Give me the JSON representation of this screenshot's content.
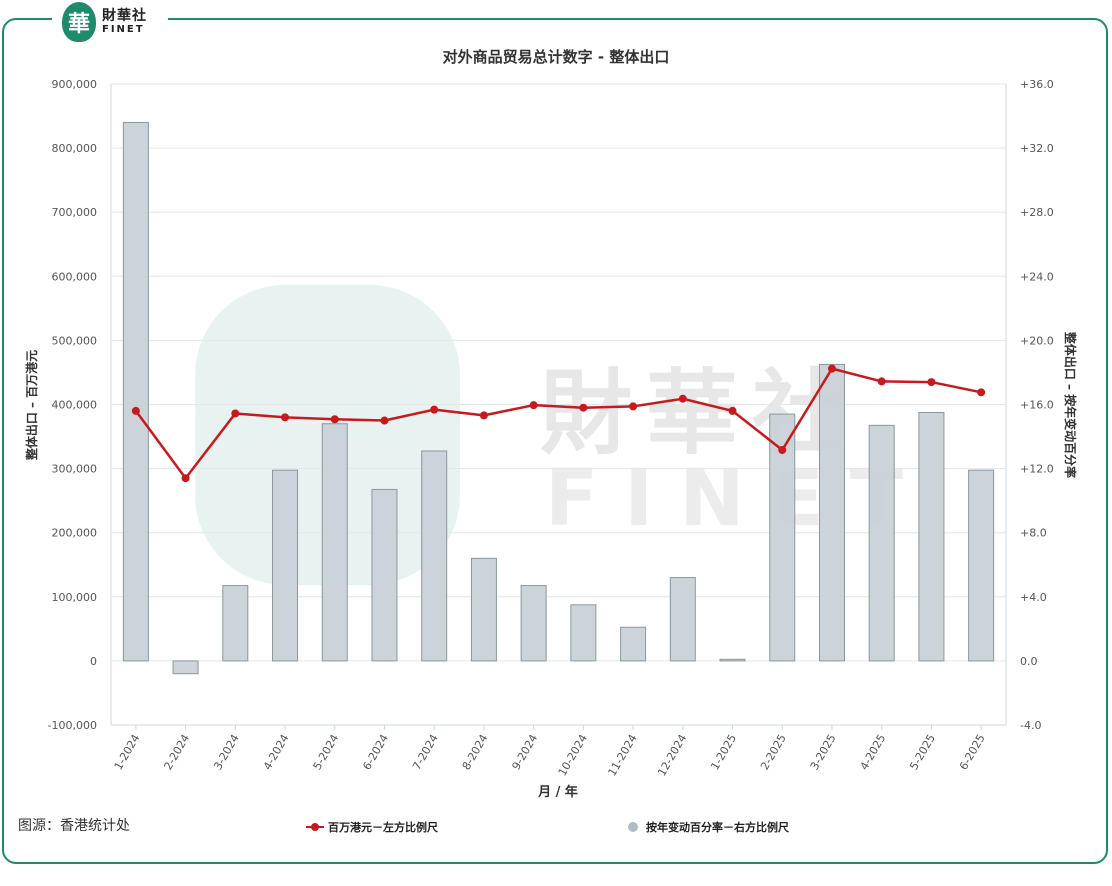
{
  "logo": {
    "mark": "華",
    "cn": "財華社",
    "en": "FINET"
  },
  "watermark": {
    "cn": "財華社",
    "en": "FINET"
  },
  "source": "图源：香港统计处",
  "colors": {
    "frame": "#1f8a6c",
    "line": "#c8191d",
    "bar_fill": "#c9d2d8",
    "bar_stroke": "#8b979e"
  },
  "chart_data": {
    "type": "bar",
    "title": "对外商品贸易总计数字 - 整体出口",
    "xlabel": "月 / 年",
    "ylabel_left": "整体出口 – 百万港元",
    "ylabel_right": "整体出口 – 按年变动百分率",
    "categories": [
      "1-2024",
      "2-2024",
      "3-2024",
      "4-2024",
      "5-2024",
      "6-2024",
      "7-2024",
      "8-2024",
      "9-2024",
      "10-2024",
      "11-2024",
      "12-2024",
      "1-2025",
      "2-2025",
      "3-2025",
      "4-2025",
      "5-2025",
      "6-2025"
    ],
    "ylim_left": [
      -100000,
      900000
    ],
    "yticks_left": [
      "900,000",
      "800,000",
      "700,000",
      "600,000",
      "500,000",
      "400,000",
      "300,000",
      "200,000",
      "100,000",
      "0",
      "-100,000"
    ],
    "ylim_right": [
      -4.0,
      36.0
    ],
    "yticks_right": [
      "+36.0",
      "+32.0",
      "+28.0",
      "+24.0",
      "+20.0",
      "+16.0",
      "+12.0",
      "+8.0",
      "+4.0",
      "0.0",
      "-4.0"
    ],
    "series": [
      {
        "name": "百万港元－左方比例尺",
        "type": "line",
        "axis": "left",
        "values": [
          390000,
          285000,
          386000,
          380000,
          377000,
          375000,
          392000,
          383000,
          399000,
          395000,
          397000,
          409000,
          390000,
          329000,
          456000,
          436000,
          435000,
          419000
        ]
      },
      {
        "name": "按年变动百分率－右方比例尺",
        "type": "bar",
        "axis": "right",
        "values": [
          33.6,
          -0.8,
          4.7,
          11.9,
          14.8,
          10.7,
          13.1,
          6.4,
          4.7,
          3.5,
          2.1,
          5.2,
          0.1,
          15.4,
          18.5,
          14.7,
          15.5,
          11.9
        ]
      }
    ],
    "grid": true,
    "legend_position": "bottom"
  }
}
